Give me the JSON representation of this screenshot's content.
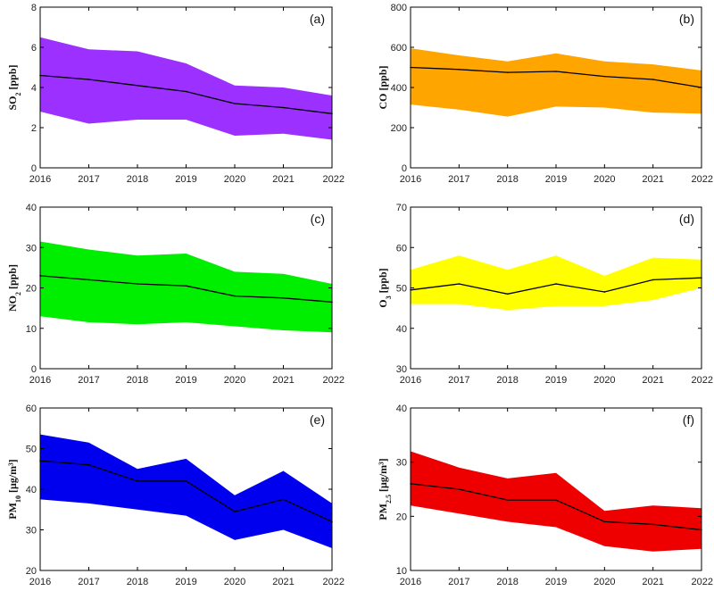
{
  "chart_data": [
    {
      "type": "area",
      "panel": "(a)",
      "ylabel": "SO",
      "ylabel_sub": "2",
      "ylabel_unit": " [ppb]",
      "x": [
        2016,
        2017,
        2018,
        2019,
        2020,
        2021,
        2022
      ],
      "xticks": [
        "2016",
        "2017",
        "2018",
        "2019",
        "2020",
        "2021",
        "2022"
      ],
      "yticks": [
        0,
        2,
        4,
        6,
        8
      ],
      "ylim": [
        0,
        8
      ],
      "color": "#9b30ff",
      "mean": [
        4.6,
        4.4,
        4.1,
        3.8,
        3.2,
        3.0,
        2.7
      ],
      "upper": [
        6.5,
        5.9,
        5.8,
        5.2,
        4.1,
        4.0,
        3.6
      ],
      "lower": [
        2.8,
        2.2,
        2.4,
        2.4,
        1.6,
        1.7,
        1.4
      ]
    },
    {
      "type": "area",
      "panel": "(b)",
      "ylabel": "CO",
      "ylabel_sub": "",
      "ylabel_unit": " [ppb]",
      "x": [
        2016,
        2017,
        2018,
        2019,
        2020,
        2021,
        2022
      ],
      "xticks": [
        "2016",
        "2017",
        "2018",
        "2019",
        "2020",
        "2021",
        "2022"
      ],
      "yticks": [
        0,
        200,
        400,
        600,
        800
      ],
      "ylim": [
        0,
        800
      ],
      "color": "#ffa500",
      "mean": [
        500,
        490,
        475,
        480,
        455,
        440,
        400
      ],
      "upper": [
        595,
        560,
        530,
        570,
        530,
        515,
        485
      ],
      "lower": [
        315,
        290,
        255,
        305,
        300,
        275,
        270
      ]
    },
    {
      "type": "area",
      "panel": "(c)",
      "ylabel": "NO",
      "ylabel_sub": "2",
      "ylabel_unit": " [ppb]",
      "x": [
        2016,
        2017,
        2018,
        2019,
        2020,
        2021,
        2022
      ],
      "xticks": [
        "2016",
        "2017",
        "2018",
        "2019",
        "2020",
        "2021",
        "2022"
      ],
      "yticks": [
        0,
        10,
        20,
        30,
        40
      ],
      "ylim": [
        0,
        40
      ],
      "color": "#00ee00",
      "mean": [
        23,
        22,
        21,
        20.5,
        18,
        17.5,
        16.5
      ],
      "upper": [
        31.5,
        29.5,
        28,
        28.5,
        24,
        23.5,
        21
      ],
      "lower": [
        13,
        11.5,
        11,
        11.5,
        10.5,
        9.5,
        9
      ]
    },
    {
      "type": "area",
      "panel": "(d)",
      "ylabel": "O",
      "ylabel_sub": "3",
      "ylabel_unit": " [ppb]",
      "x": [
        2016,
        2017,
        2018,
        2019,
        2020,
        2021,
        2022
      ],
      "xticks": [
        "2016",
        "2017",
        "2018",
        "2019",
        "2020",
        "2021",
        "2022"
      ],
      "yticks": [
        30,
        40,
        50,
        60,
        70
      ],
      "ylim": [
        30,
        70
      ],
      "color": "#ffff00",
      "mean": [
        49.5,
        51,
        48.5,
        51,
        49,
        52,
        52.5
      ],
      "upper": [
        54.5,
        58,
        54.5,
        58,
        53,
        57.5,
        57
      ],
      "lower": [
        46,
        46,
        44.5,
        45.5,
        45.5,
        47,
        50
      ]
    },
    {
      "type": "area",
      "panel": "(e)",
      "ylabel": "PM",
      "ylabel_sub": "10",
      "ylabel_unit": " [μg/m³]",
      "x": [
        2016,
        2017,
        2018,
        2019,
        2020,
        2021,
        2022
      ],
      "xticks": [
        "2016",
        "2017",
        "2018",
        "2019",
        "2020",
        "2021",
        "2022"
      ],
      "yticks": [
        20,
        30,
        40,
        50,
        60
      ],
      "ylim": [
        20,
        60
      ],
      "color": "#0000ee",
      "mean": [
        47,
        46,
        42,
        42,
        34.5,
        37.5,
        32
      ],
      "upper": [
        53.5,
        51.5,
        45,
        47.5,
        38.5,
        44.5,
        36.5
      ],
      "lower": [
        37.5,
        36.5,
        35,
        33.5,
        27.5,
        30,
        25.5
      ]
    },
    {
      "type": "area",
      "panel": "(f)",
      "ylabel": "PM",
      "ylabel_sub": "2.5",
      "ylabel_unit": " [μg/m³]",
      "x": [
        2016,
        2017,
        2018,
        2019,
        2020,
        2021,
        2022
      ],
      "xticks": [
        "2016",
        "2017",
        "2018",
        "2019",
        "2020",
        "2021",
        "2022"
      ],
      "yticks": [
        10,
        20,
        30,
        40
      ],
      "ylim": [
        10,
        40
      ],
      "color": "#ee0000",
      "mean": [
        26,
        25,
        23,
        23,
        19,
        18.5,
        17.5
      ],
      "upper": [
        32,
        29,
        27,
        28,
        21,
        22,
        21.5
      ],
      "lower": [
        22,
        20.5,
        19,
        18,
        14.5,
        13.5,
        14
      ]
    }
  ]
}
